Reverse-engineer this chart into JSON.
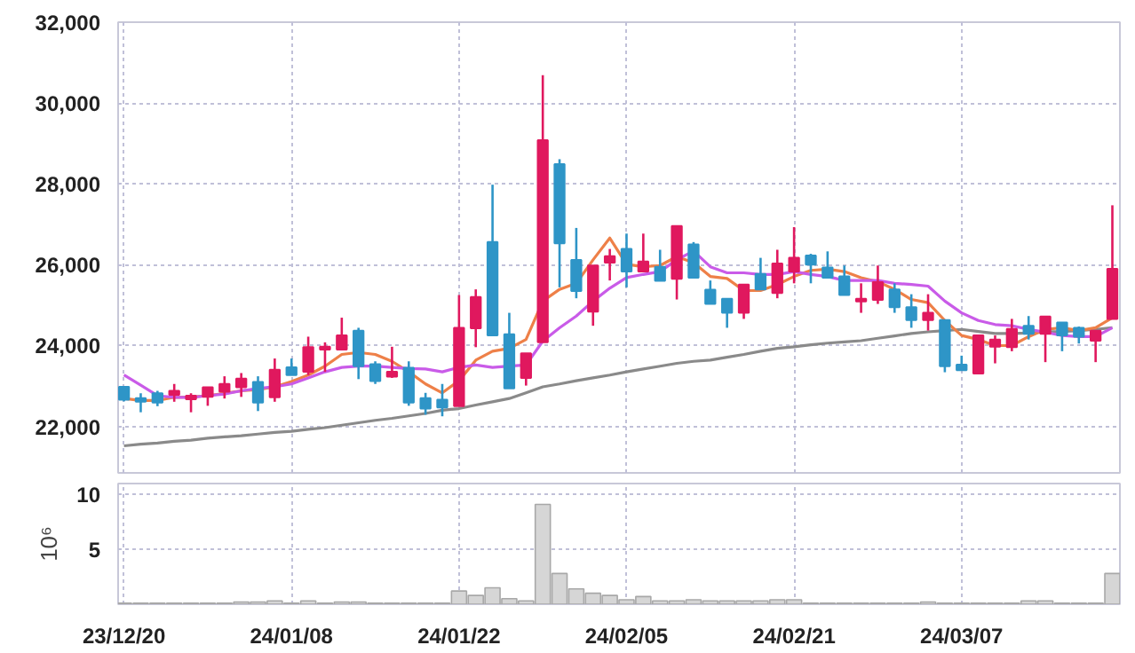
{
  "chart_data": [
    {
      "type": "candlestick",
      "categories": [
        "23/12/20",
        null,
        null,
        null,
        null,
        null,
        null,
        null,
        null,
        null,
        "24/01/08",
        null,
        null,
        null,
        null,
        null,
        null,
        null,
        null,
        null,
        "24/01/22",
        null,
        null,
        null,
        null,
        null,
        null,
        null,
        null,
        null,
        "24/02/05",
        null,
        null,
        null,
        null,
        null,
        null,
        null,
        null,
        null,
        "24/02/21",
        null,
        null,
        null,
        null,
        null,
        null,
        null,
        null,
        null,
        "24/03/07",
        null,
        null,
        null,
        null,
        null,
        null,
        null,
        null,
        null
      ],
      "ohlc": [
        [
          22980,
          23000,
          22620,
          22660
        ],
        [
          22700,
          22820,
          22350,
          22610
        ],
        [
          22820,
          22880,
          22500,
          22590
        ],
        [
          22780,
          23050,
          22610,
          22880
        ],
        [
          22670,
          22820,
          22350,
          22760
        ],
        [
          22730,
          22970,
          22510,
          22970
        ],
        [
          22860,
          23240,
          22690,
          23050
        ],
        [
          22970,
          23320,
          22730,
          23180
        ],
        [
          23100,
          23240,
          22380,
          22590
        ],
        [
          22720,
          23680,
          22610,
          23400
        ],
        [
          23460,
          23680,
          23270,
          23270
        ],
        [
          23350,
          24220,
          23270,
          23960
        ],
        [
          23900,
          24080,
          23350,
          23970
        ],
        [
          23900,
          24690,
          23900,
          24250
        ],
        [
          24370,
          24440,
          23170,
          23490
        ],
        [
          23540,
          23610,
          23050,
          23120
        ],
        [
          23230,
          23970,
          23200,
          23350
        ],
        [
          23450,
          23610,
          22510,
          22590
        ],
        [
          22700,
          22830,
          22290,
          22440
        ],
        [
          22660,
          23050,
          22250,
          22470
        ],
        [
          22500,
          25250,
          22500,
          24440
        ],
        [
          24430,
          25390,
          23960,
          25200
        ],
        [
          26560,
          27980,
          24250,
          24250
        ],
        [
          24280,
          24810,
          22940,
          22940
        ],
        [
          23200,
          23810,
          23010,
          23810
        ],
        [
          24080,
          30690,
          24080,
          29080
        ],
        [
          28490,
          28610,
          25440,
          26530
        ],
        [
          26120,
          26910,
          25170,
          25350
        ],
        [
          24840,
          25980,
          24490,
          25980
        ],
        [
          26050,
          26390,
          25610,
          26210
        ],
        [
          26390,
          26770,
          25440,
          25830
        ],
        [
          25830,
          26770,
          25830,
          26080
        ],
        [
          25950,
          26370,
          25600,
          25600
        ],
        [
          25650,
          26960,
          25140,
          26960
        ],
        [
          26500,
          26560,
          25680,
          25680
        ],
        [
          25380,
          25610,
          25030,
          25030
        ],
        [
          25160,
          25160,
          24440,
          24810
        ],
        [
          24810,
          25510,
          24660,
          25510
        ],
        [
          25770,
          26170,
          25390,
          25390
        ],
        [
          25300,
          26370,
          25170,
          26030
        ],
        [
          25830,
          26930,
          25540,
          26170
        ],
        [
          26230,
          26270,
          25540,
          26000
        ],
        [
          25930,
          26330,
          25680,
          25680
        ],
        [
          25710,
          25980,
          25250,
          25250
        ],
        [
          25090,
          25540,
          24810,
          25160
        ],
        [
          25130,
          25980,
          25030,
          25570
        ],
        [
          25390,
          25540,
          24810,
          24950
        ],
        [
          24950,
          25270,
          24440,
          24630
        ],
        [
          24630,
          25270,
          24370,
          24810
        ],
        [
          24630,
          24630,
          23340,
          23490
        ],
        [
          23530,
          23750,
          23390,
          23390
        ],
        [
          23310,
          24250,
          23310,
          24250
        ],
        [
          23970,
          24250,
          23560,
          24150
        ],
        [
          23960,
          24660,
          23860,
          24410
        ],
        [
          24490,
          24730,
          24150,
          24290
        ],
        [
          24290,
          24720,
          23590,
          24720
        ],
        [
          24570,
          24570,
          23860,
          24250
        ],
        [
          24440,
          24470,
          24050,
          24220
        ],
        [
          24120,
          24370,
          23590,
          24370
        ],
        [
          24660,
          27470,
          24660,
          25900
        ]
      ],
      "colors": [
        "#2e95c7",
        "#2e95c7",
        "#2e95c7",
        "#e0185e",
        "#e0185e",
        "#e0185e",
        "#e0185e",
        "#e0185e",
        "#2e95c7",
        "#e0185e",
        "#2e95c7",
        "#e0185e",
        "#e0185e",
        "#e0185e",
        "#2e95c7",
        "#2e95c7",
        "#e0185e",
        "#2e95c7",
        "#2e95c7",
        "#2e95c7",
        "#e0185e",
        "#e0185e",
        "#2e95c7",
        "#2e95c7",
        "#e0185e",
        "#e0185e",
        "#2e95c7",
        "#2e95c7",
        "#e0185e",
        "#e0185e",
        "#2e95c7",
        "#e0185e",
        "#2e95c7",
        "#e0185e",
        "#2e95c7",
        "#2e95c7",
        "#2e95c7",
        "#e0185e",
        "#2e95c7",
        "#e0185e",
        "#e0185e",
        "#2e95c7",
        "#2e95c7",
        "#2e95c7",
        "#e0185e",
        "#e0185e",
        "#2e95c7",
        "#2e95c7",
        "#e0185e",
        "#2e95c7",
        "#2e95c7",
        "#e0185e",
        "#e0185e",
        "#e0185e",
        "#2e95c7",
        "#e0185e",
        "#2e95c7",
        "#2e95c7",
        "#e0185e",
        "#e0185e"
      ],
      "series": [
        {
          "type": "line",
          "color": "#8a8a8a",
          "values": [
            21520,
            21560,
            21590,
            21630,
            21660,
            21710,
            21740,
            21770,
            21810,
            21850,
            21880,
            21930,
            21970,
            22030,
            22090,
            22150,
            22200,
            22260,
            22320,
            22400,
            22440,
            22530,
            22610,
            22690,
            22830,
            22980,
            23050,
            23130,
            23200,
            23270,
            23350,
            23420,
            23490,
            23560,
            23610,
            23640,
            23710,
            23780,
            23860,
            23930,
            23970,
            24020,
            24060,
            24090,
            24120,
            24180,
            24240,
            24300,
            24340,
            24370,
            24400,
            24350,
            24300,
            24300,
            24310,
            24340,
            24350,
            24370,
            24400,
            24440
          ]
        },
        {
          "type": "line",
          "color": "#ee8048",
          "values": [
            22690,
            22640,
            22640,
            22720,
            22730,
            22760,
            22820,
            22880,
            22910,
            22980,
            23110,
            23270,
            23490,
            23780,
            23830,
            23780,
            23610,
            23350,
            23050,
            22830,
            23130,
            23640,
            23860,
            23930,
            24150,
            25100,
            25390,
            25540,
            26120,
            26660,
            26010,
            25950,
            25980,
            26200,
            26050,
            25710,
            25660,
            25360,
            25360,
            25510,
            25710,
            25860,
            25890,
            25830,
            25680,
            25580,
            25390,
            25140,
            25060,
            24620,
            24250,
            24150,
            24000,
            24000,
            24220,
            24400,
            24440,
            24370,
            24440,
            24690
          ]
        },
        {
          "type": "line",
          "color": "#c95be8",
          "values": [
            23270,
            23020,
            22760,
            22720,
            22720,
            22760,
            22800,
            22880,
            22940,
            22980,
            23050,
            23200,
            23350,
            23460,
            23490,
            23490,
            23460,
            23430,
            23420,
            23350,
            23460,
            23520,
            23460,
            23490,
            23520,
            24110,
            24440,
            24730,
            25100,
            25420,
            25680,
            25760,
            25830,
            26120,
            26340,
            25950,
            25800,
            25800,
            25760,
            25760,
            25830,
            25760,
            25710,
            25610,
            25610,
            25610,
            25540,
            25510,
            25470,
            25100,
            24810,
            24620,
            24520,
            24490,
            24400,
            24330,
            24250,
            24220,
            24220,
            24440
          ]
        }
      ],
      "ylim": [
        20850,
        32000
      ],
      "yticks": [
        {
          "value": 22000,
          "label": "22,000"
        },
        {
          "value": 24000,
          "label": "24,000"
        },
        {
          "value": 26000,
          "label": "26,000"
        },
        {
          "value": 28000,
          "label": "28,000"
        },
        {
          "value": 30000,
          "label": "30,000"
        },
        {
          "value": 32000,
          "label": "32,000"
        }
      ],
      "grid": true,
      "tick_labels": "y"
    },
    {
      "type": "bar",
      "values": [
        0.1,
        0.1,
        0.1,
        0.1,
        0.1,
        0.1,
        0.1,
        0.2,
        0.2,
        0.3,
        0.1,
        0.3,
        0.1,
        0.2,
        0.2,
        0.1,
        0.1,
        0.1,
        0.1,
        0.1,
        1.2,
        0.8,
        1.5,
        0.5,
        0.3,
        9.1,
        2.8,
        1.4,
        1.0,
        0.8,
        0.4,
        0.7,
        0.3,
        0.3,
        0.4,
        0.3,
        0.3,
        0.3,
        0.3,
        0.4,
        0.4,
        0.1,
        0.1,
        0.1,
        0.1,
        0.1,
        0.1,
        0.1,
        0.2,
        0.1,
        0.1,
        0.1,
        0.1,
        0.1,
        0.3,
        0.3,
        0.1,
        0.1,
        0.1,
        2.8
      ],
      "color": "#d6d6d6",
      "ylabel": "10⁶",
      "ylim": [
        0,
        11
      ],
      "yticks": [
        5,
        10
      ],
      "grid": true
    }
  ]
}
